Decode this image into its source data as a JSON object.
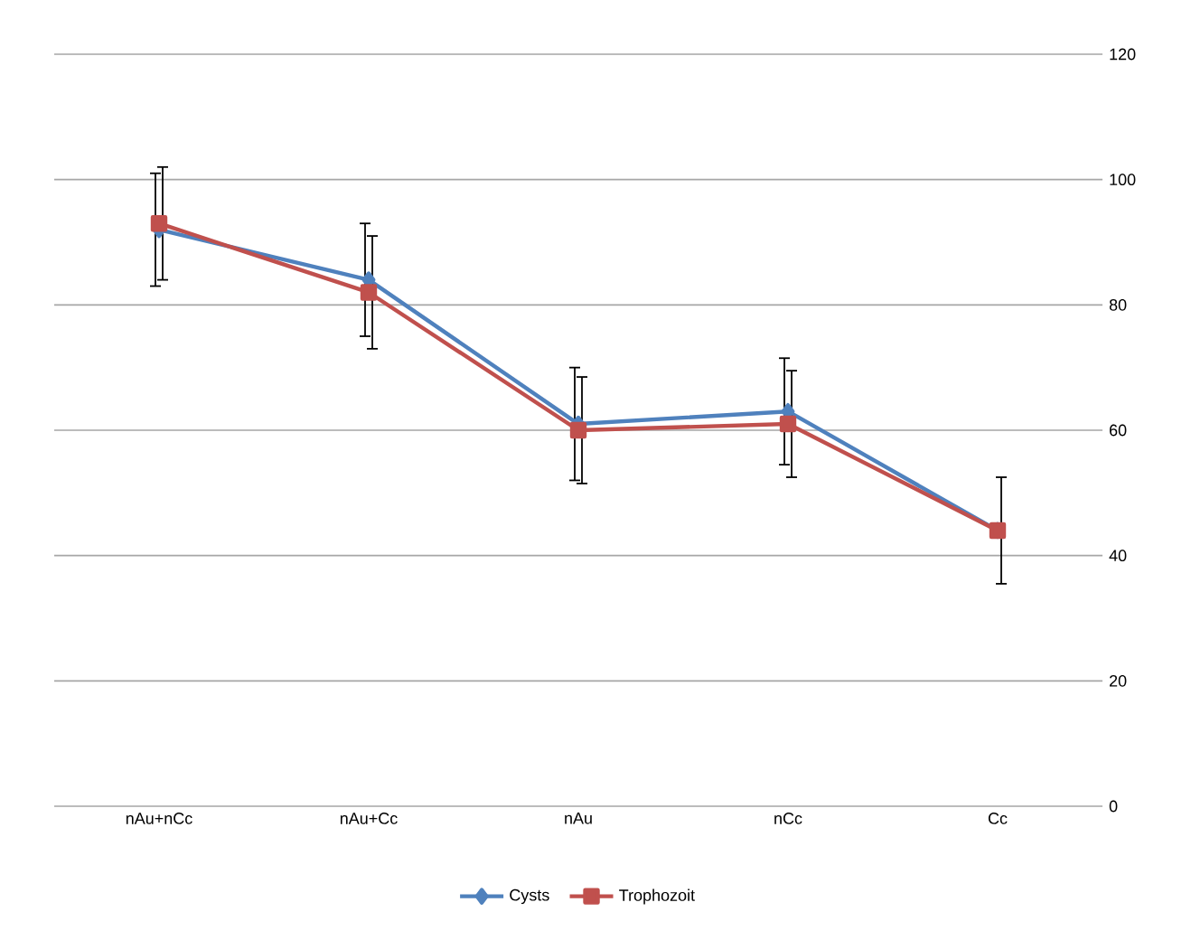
{
  "chart_data": {
    "type": "line",
    "categories": [
      "nAu+nCc",
      "nAu+Cc",
      "nAu",
      "nCc",
      "Cc"
    ],
    "series": [
      {
        "name": "Cysts",
        "color": "#4f81bd",
        "marker": "diamond",
        "values": [
          92,
          84,
          61,
          63,
          44
        ],
        "errors": [
          9,
          9,
          9,
          8.5,
          null
        ]
      },
      {
        "name": "Trophozoit",
        "color": "#c0504d",
        "marker": "square",
        "values": [
          93,
          82,
          60,
          61,
          44
        ],
        "errors": [
          9,
          9,
          8.5,
          8.5,
          8.5
        ]
      }
    ],
    "ylim": [
      0,
      120
    ],
    "yticks": [
      0,
      20,
      40,
      60,
      80,
      100,
      120
    ],
    "grid": "y",
    "legend": "bottom",
    "line_style": "solid"
  }
}
